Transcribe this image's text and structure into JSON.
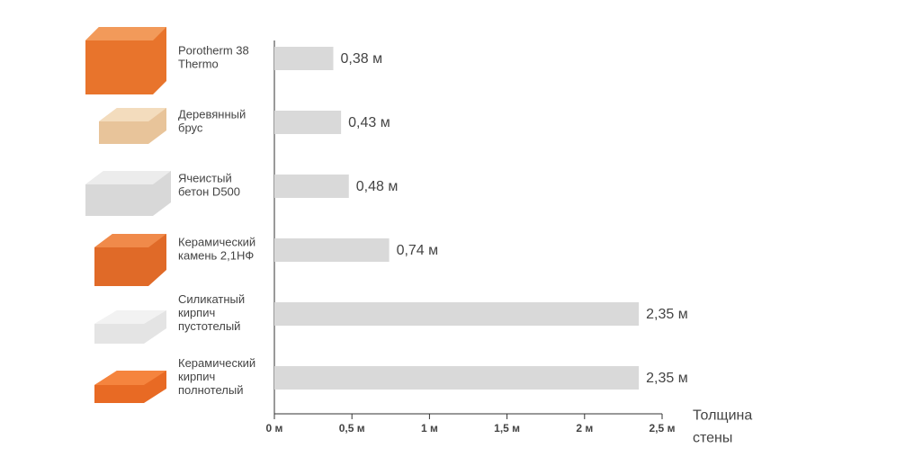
{
  "chart_data": {
    "type": "barh",
    "categories": [
      "Porotherm 38\nThermo",
      "Деревянный\nбрус",
      "Ячеистый\nбетон D500",
      "Керамический\nкамень 2,1НФ",
      "Силикатный\nкирпич\nпустотелый",
      "Керамический\nкирпич\nполнотелый"
    ],
    "values": [
      0.38,
      0.43,
      0.48,
      0.74,
      2.35,
      2.35
    ],
    "value_labels": [
      "0,38 м",
      "0,43 м",
      "0,48 м",
      "0,74 м",
      "2,35 м",
      "2,35 м"
    ],
    "color": "#d9d9d9",
    "xlim": [
      0,
      2.5
    ],
    "xticks": [
      {
        "value": 0,
        "label": "0 м"
      },
      {
        "value": 0.5,
        "label": "0,5 м"
      },
      {
        "value": 1,
        "label": "1 м"
      },
      {
        "value": 1.5,
        "label": "1,5 м"
      },
      {
        "value": 2,
        "label": "2 м"
      },
      {
        "value": 2.5,
        "label": "2,5 м"
      }
    ],
    "x_label": "Толщина\nстены"
  }
}
